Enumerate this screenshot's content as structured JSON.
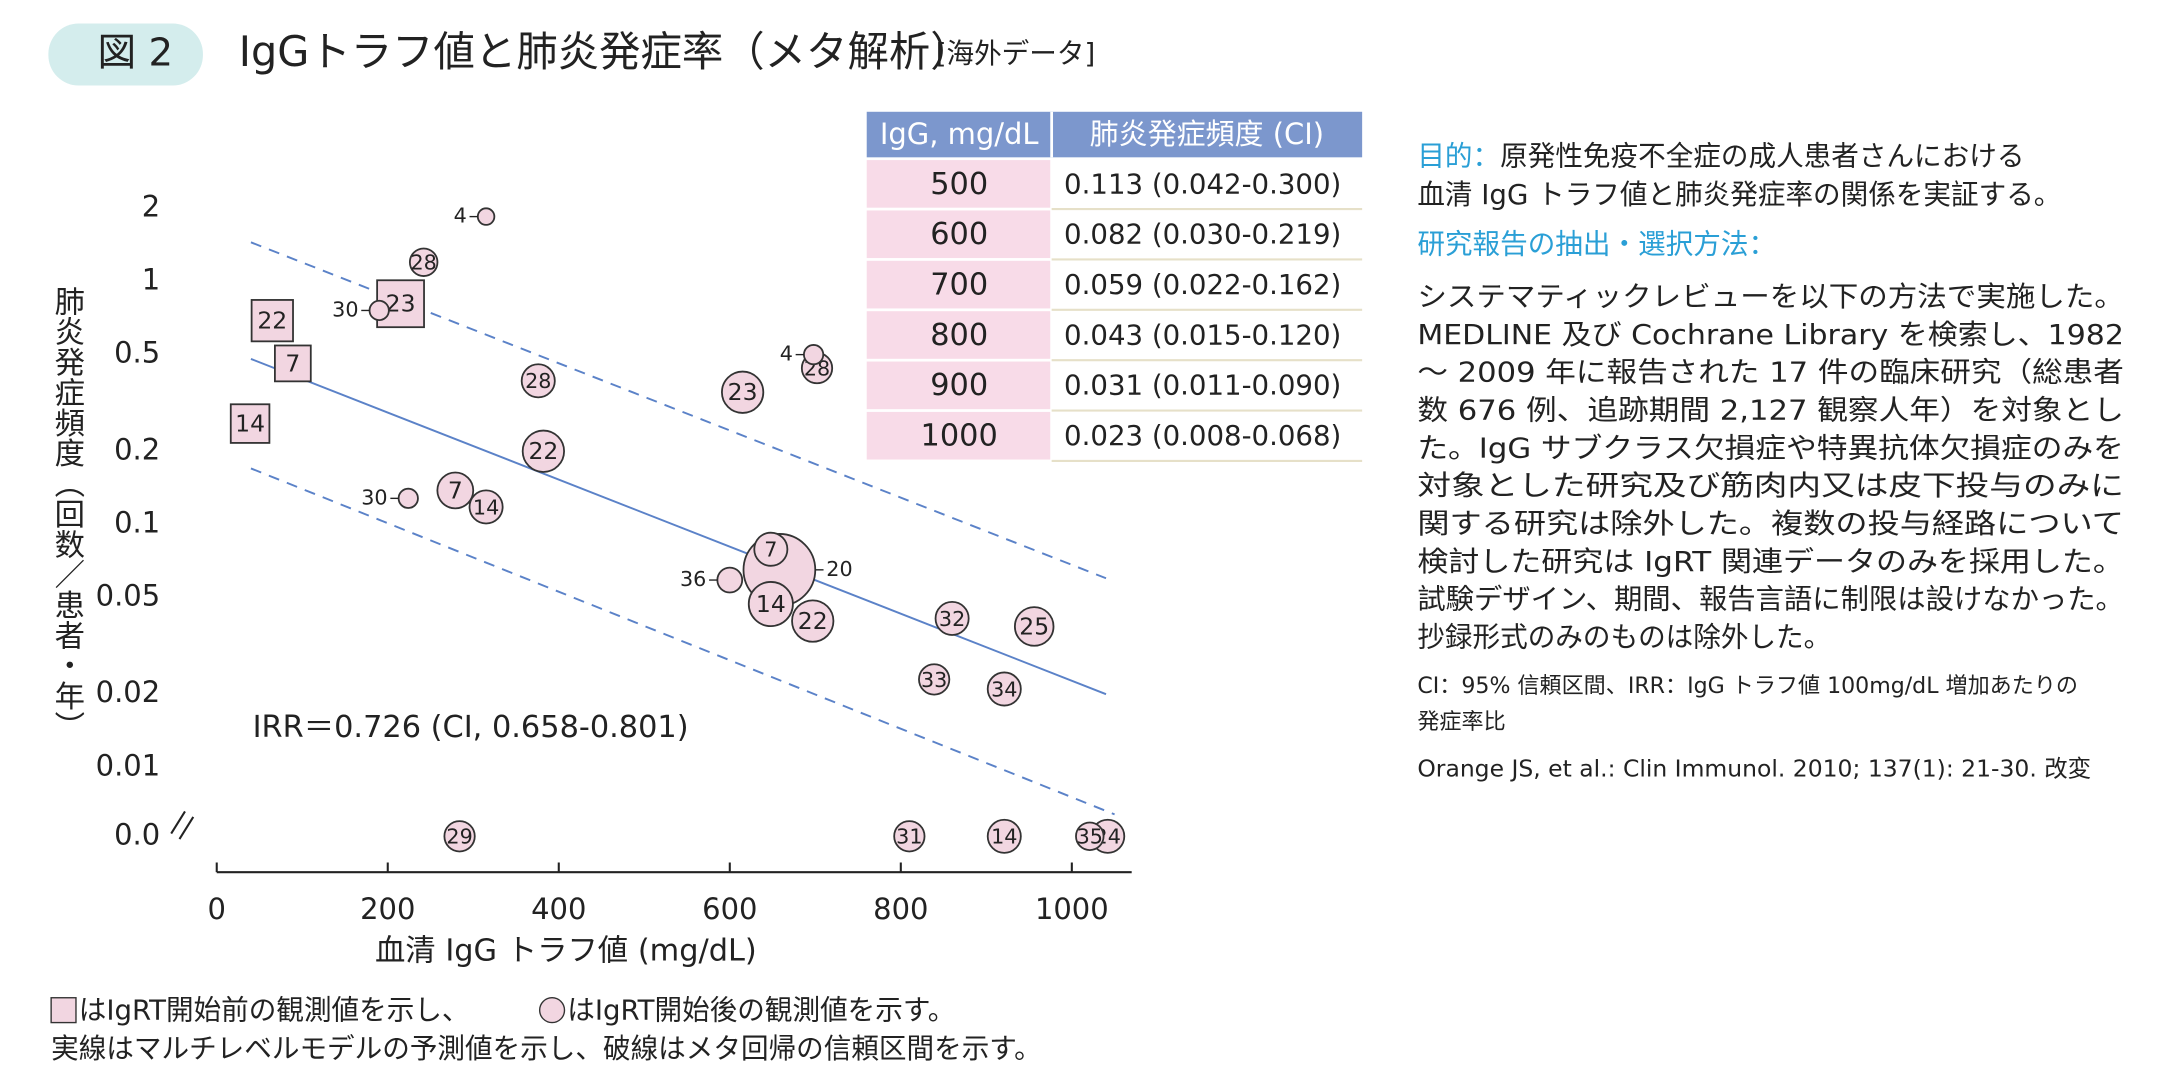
{
  "figure_label": "図 2",
  "title": "IgGトラフ値と肺炎発症率（メタ解析）",
  "title_note": "[海外データ]",
  "chart_data": {
    "type": "scatter",
    "x_label": "血清 IgG トラフ値 (mg/dL)",
    "y_label": "肺炎発症頻度（回数／患者・年）",
    "log_y": true,
    "xlim": [
      0,
      1070
    ],
    "ylim": [
      0.01,
      2
    ],
    "xticks": [
      0,
      200,
      400,
      600,
      800,
      1000
    ],
    "yticks": [
      2,
      1,
      0.5,
      0.2,
      0.1,
      0.05,
      0.02,
      0.01,
      {
        "value": 0,
        "label": "0.0"
      }
    ],
    "annotation": "IRR＝0.726 (CI, 0.658-0.801)",
    "marker_fill": "#f2d6e1",
    "marker_stroke": "#333333",
    "series": [
      {
        "marker": "square",
        "x": [
          65,
          215,
          89,
          39
        ],
        "values": [
          0.69,
          0.81,
          0.46,
          0.26
        ],
        "labels": [
          "22",
          "23",
          "7",
          "14"
        ],
        "sizes": [
          15,
          17,
          13,
          14
        ]
      },
      {
        "marker": "circle",
        "x": [
          315,
          242,
          190,
          698,
          702,
          376,
          615,
          382,
          224,
          279,
          315,
          648,
          658,
          600,
          648,
          697,
          860,
          956,
          839,
          921,
          284,
          810,
          921,
          1021,
          1042
        ],
        "values": [
          1.85,
          1.2,
          0.76,
          0.5,
          0.44,
          0.39,
          0.35,
          0.2,
          0.128,
          0.138,
          0.118,
          0.079,
          0.065,
          0.059,
          0.047,
          0.04,
          0.041,
          0.038,
          0.023,
          0.021,
          0,
          0,
          0,
          0,
          0
        ],
        "labels": [
          "4",
          "28",
          "30",
          "4",
          "28",
          "28",
          "23",
          "22",
          "30",
          "7",
          "14",
          "7",
          "20",
          "36",
          "14",
          "22",
          "32",
          "25",
          "33",
          "34",
          "29",
          "31",
          "14",
          "35",
          "24"
        ],
        "sizes": [
          6,
          10,
          7,
          7,
          11,
          12,
          15,
          15,
          7,
          13,
          12,
          12,
          26,
          9,
          16,
          15,
          12,
          14,
          11,
          12,
          11,
          11,
          12,
          10,
          12
        ]
      }
    ],
    "fit_lines": [
      {
        "style": "solid",
        "color": "#5b82c8",
        "x": [
          40,
          1040
        ],
        "values": [
          0.48,
          0.02
        ]
      },
      {
        "style": "dashed",
        "color": "#5b82c8",
        "x": [
          40,
          1040
        ],
        "values": [
          1.45,
          0.06
        ]
      },
      {
        "style": "dashed",
        "color": "#5b82c8",
        "x": [
          40,
          1050
        ],
        "values": [
          0.17,
          0.0064
        ]
      }
    ]
  },
  "table": {
    "header": [
      "IgG, mg/dL",
      "肺炎発症頻度 (CI)"
    ],
    "rows": [
      [
        "500",
        "0.113 (0.042-0.300)"
      ],
      [
        "600",
        "0.082 (0.030-0.219)"
      ],
      [
        "700",
        "0.059 (0.022-0.162)"
      ],
      [
        "800",
        "0.043 (0.015-0.120)"
      ],
      [
        "900",
        "0.031 (0.011-0.090)"
      ],
      [
        "1000",
        "0.023 (0.008-0.068)"
      ]
    ]
  },
  "purpose": {
    "heading": "目的：",
    "lines": [
      "原発性免疫不全症の成人患者さんにおける",
      "血清 IgG トラフ値と肺炎発症率の関係を実証する。"
    ]
  },
  "method": {
    "heading": "研究報告の抽出・選択方法：",
    "lines": [
      "システマティックレビューを以下の方法で実施した。",
      "MEDLINE 及び Cochrane Library を検索し、1982",
      "〜 2009 年に報告された 17 件の臨床研究（総患者",
      "数 676 例、追跡期間 2,127 観察人年）を対象とし",
      "た。IgG サブクラス欠損症や特異抗体欠損症のみを",
      "対象とした研究及び筋肉内又は皮下投与のみに",
      "関する研究は除外した。複数の投与経路について",
      "検討した研究は IgRT 関連データのみを採用した。",
      "試験デザイン、期間、報告言語に制限は設けなかった。",
      "抄録形式のみのものは除外した。"
    ]
  },
  "notes": [
    "CI：95% 信頼区間、IRR：IgG トラフ値 100mg/dL 増加あたりの",
    "発症率比"
  ],
  "citation": "Orange JS, et al.: Clin Immunol. 2010; 137(1): 21-30. 改変",
  "legend": {
    "before": "はIgRT開始前の観測値を示し、",
    "after": "はIgRT開始後の観測値を示す。",
    "line2": "実線はマルチレベルモデルの予測値を示し、破線はメタ回帰の信頼区間を示す。"
  }
}
